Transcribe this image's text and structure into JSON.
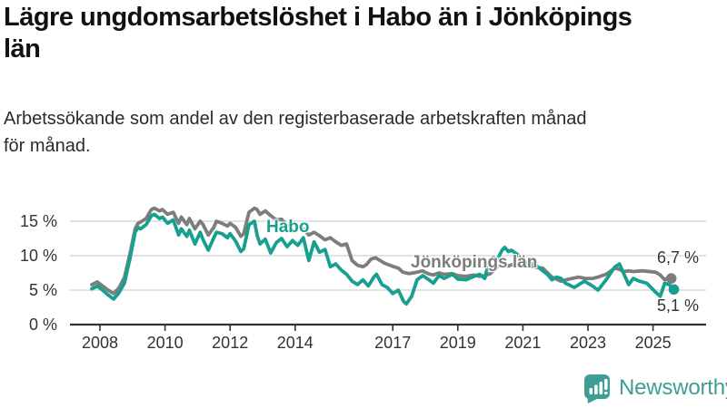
{
  "header": {
    "title_lines": [
      "Lägre ungdomsarbetslöshet i Habo än i Jönköpings",
      "län"
    ],
    "subtitle_lines": [
      "Arbetssökande som andel av den registerbaserade arbetskraften månad",
      "för månad."
    ]
  },
  "chart_data": {
    "type": "line",
    "title": "Lägre ungdomsarbetslöshet i Habo än i Jönköpings län",
    "subtitle": "Arbetssökande som andel av den registerbaserade arbetskraften månad för månad.",
    "unit": "%",
    "grid": "horizontal",
    "legend": "inline-labels",
    "x_axis": {
      "ticks": [
        2008,
        2010,
        2012,
        2014,
        2017,
        2019,
        2021,
        2023,
        2025
      ],
      "labels": [
        "2008",
        "2010",
        "2012",
        "2014",
        "2017",
        "2019",
        "2021",
        "2023",
        "2025"
      ],
      "range": [
        2007.7,
        2025.8
      ]
    },
    "y_axis": {
      "ticks": [
        0,
        5,
        10,
        15
      ],
      "labels": [
        "0 %",
        "5 %",
        "10 %",
        "15 %"
      ],
      "range": [
        0,
        18
      ]
    },
    "series": [
      {
        "name": "Habo",
        "color": "#17A08F",
        "end_label": "5,1 %",
        "end_value": 5.1,
        "points": [
          [
            2007.75,
            5.2
          ],
          [
            2007.92,
            5.6
          ],
          [
            2008.08,
            5.0
          ],
          [
            2008.25,
            4.3
          ],
          [
            2008.42,
            3.7
          ],
          [
            2008.58,
            4.6
          ],
          [
            2008.75,
            6.0
          ],
          [
            2008.92,
            9.5
          ],
          [
            2009.08,
            13.4
          ],
          [
            2009.17,
            14.1
          ],
          [
            2009.25,
            13.9
          ],
          [
            2009.42,
            14.5
          ],
          [
            2009.58,
            15.8
          ],
          [
            2009.67,
            16.0
          ],
          [
            2009.83,
            15.4
          ],
          [
            2009.92,
            15.6
          ],
          [
            2010.08,
            14.7
          ],
          [
            2010.25,
            15.2
          ],
          [
            2010.42,
            13.0
          ],
          [
            2010.5,
            13.9
          ],
          [
            2010.67,
            12.8
          ],
          [
            2010.75,
            13.7
          ],
          [
            2010.92,
            11.7
          ],
          [
            2011.08,
            13.4
          ],
          [
            2011.17,
            12.3
          ],
          [
            2011.33,
            10.8
          ],
          [
            2011.5,
            12.6
          ],
          [
            2011.58,
            13.4
          ],
          [
            2011.75,
            13.2
          ],
          [
            2011.92,
            12.6
          ],
          [
            2012.0,
            13.2
          ],
          [
            2012.17,
            12.1
          ],
          [
            2012.33,
            10.6
          ],
          [
            2012.42,
            11.0
          ],
          [
            2012.58,
            14.5
          ],
          [
            2012.75,
            15.0
          ],
          [
            2012.83,
            13.0
          ],
          [
            2012.92,
            11.7
          ],
          [
            2013.08,
            12.4
          ],
          [
            2013.25,
            10.4
          ],
          [
            2013.42,
            11.9
          ],
          [
            2013.58,
            12.5
          ],
          [
            2013.75,
            11.3
          ],
          [
            2013.92,
            12.2
          ],
          [
            2014.08,
            11.5
          ],
          [
            2014.25,
            12.6
          ],
          [
            2014.42,
            9.3
          ],
          [
            2014.58,
            12.0
          ],
          [
            2014.75,
            10.5
          ],
          [
            2014.92,
            10.9
          ],
          [
            2015.08,
            8.4
          ],
          [
            2015.25,
            8.8
          ],
          [
            2015.42,
            7.9
          ],
          [
            2015.58,
            7.3
          ],
          [
            2015.75,
            6.3
          ],
          [
            2015.92,
            5.8
          ],
          [
            2016.08,
            6.5
          ],
          [
            2016.25,
            5.6
          ],
          [
            2016.42,
            6.9
          ],
          [
            2016.5,
            7.3
          ],
          [
            2016.67,
            5.8
          ],
          [
            2016.83,
            5.4
          ],
          [
            2017.0,
            4.5
          ],
          [
            2017.17,
            5.0
          ],
          [
            2017.33,
            3.4
          ],
          [
            2017.42,
            3.0
          ],
          [
            2017.58,
            4.1
          ],
          [
            2017.75,
            6.5
          ],
          [
            2017.92,
            7.1
          ],
          [
            2018.08,
            6.6
          ],
          [
            2018.25,
            6.0
          ],
          [
            2018.42,
            7.1
          ],
          [
            2018.58,
            6.7
          ],
          [
            2018.83,
            7.3
          ],
          [
            2019.0,
            6.6
          ],
          [
            2019.25,
            6.5
          ],
          [
            2019.5,
            7.0
          ],
          [
            2019.67,
            7.3
          ],
          [
            2019.83,
            6.7
          ],
          [
            2019.94,
            8.9
          ],
          [
            2020.08,
            9.7
          ],
          [
            2020.22,
            9.5
          ],
          [
            2020.36,
            10.8
          ],
          [
            2020.44,
            11.2
          ],
          [
            2020.56,
            10.6
          ],
          [
            2020.64,
            10.8
          ],
          [
            2020.83,
            10.2
          ],
          [
            2021.0,
            9.4
          ],
          [
            2021.17,
            8.6
          ],
          [
            2021.33,
            8.9
          ],
          [
            2021.61,
            7.8
          ],
          [
            2021.75,
            7.3
          ],
          [
            2021.89,
            6.5
          ],
          [
            2022.03,
            6.9
          ],
          [
            2022.17,
            6.7
          ],
          [
            2022.31,
            6.0
          ],
          [
            2022.58,
            5.4
          ],
          [
            2022.89,
            6.3
          ],
          [
            2023.14,
            5.6
          ],
          [
            2023.31,
            5.0
          ],
          [
            2023.56,
            6.5
          ],
          [
            2023.83,
            8.4
          ],
          [
            2023.97,
            8.8
          ],
          [
            2024.11,
            7.3
          ],
          [
            2024.25,
            5.8
          ],
          [
            2024.39,
            6.7
          ],
          [
            2024.58,
            6.3
          ],
          [
            2024.81,
            6.0
          ],
          [
            2025.08,
            4.7
          ],
          [
            2025.22,
            4.1
          ],
          [
            2025.36,
            6.0
          ],
          [
            2025.5,
            5.8
          ],
          [
            2025.64,
            5.1
          ]
        ]
      },
      {
        "name": "Jönköpings län",
        "color": "#7D7D7D",
        "end_label": "6,7 %",
        "end_value": 6.7,
        "points": [
          [
            2007.75,
            5.8
          ],
          [
            2007.92,
            6.2
          ],
          [
            2008.08,
            5.6
          ],
          [
            2008.25,
            5.0
          ],
          [
            2008.42,
            4.5
          ],
          [
            2008.58,
            5.3
          ],
          [
            2008.75,
            6.8
          ],
          [
            2008.92,
            10.2
          ],
          [
            2009.08,
            13.9
          ],
          [
            2009.17,
            14.7
          ],
          [
            2009.25,
            14.9
          ],
          [
            2009.42,
            15.4
          ],
          [
            2009.58,
            16.7
          ],
          [
            2009.67,
            16.9
          ],
          [
            2009.83,
            16.5
          ],
          [
            2009.92,
            16.7
          ],
          [
            2010.08,
            16.0
          ],
          [
            2010.25,
            16.3
          ],
          [
            2010.42,
            14.7
          ],
          [
            2010.5,
            15.6
          ],
          [
            2010.67,
            14.5
          ],
          [
            2010.75,
            15.4
          ],
          [
            2010.92,
            13.9
          ],
          [
            2011.08,
            15.0
          ],
          [
            2011.17,
            14.5
          ],
          [
            2011.33,
            13.0
          ],
          [
            2011.5,
            14.1
          ],
          [
            2011.58,
            15.0
          ],
          [
            2011.75,
            14.7
          ],
          [
            2011.92,
            14.3
          ],
          [
            2012.0,
            14.7
          ],
          [
            2012.17,
            14.1
          ],
          [
            2012.33,
            12.8
          ],
          [
            2012.42,
            13.2
          ],
          [
            2012.58,
            16.3
          ],
          [
            2012.75,
            16.9
          ],
          [
            2012.83,
            16.7
          ],
          [
            2012.92,
            16.0
          ],
          [
            2013.08,
            16.5
          ],
          [
            2013.25,
            15.8
          ],
          [
            2013.42,
            15.2
          ],
          [
            2013.58,
            15.3
          ],
          [
            2013.75,
            14.4
          ],
          [
            2013.92,
            14.6
          ],
          [
            2014.08,
            14.3
          ],
          [
            2014.25,
            13.9
          ],
          [
            2014.42,
            13.0
          ],
          [
            2014.58,
            13.4
          ],
          [
            2014.75,
            12.9
          ],
          [
            2014.92,
            12.3
          ],
          [
            2015.08,
            12.6
          ],
          [
            2015.25,
            12.0
          ],
          [
            2015.42,
            11.5
          ],
          [
            2015.58,
            11.7
          ],
          [
            2015.75,
            9.3
          ],
          [
            2015.92,
            8.6
          ],
          [
            2016.08,
            8.4
          ],
          [
            2016.19,
            8.7
          ],
          [
            2016.33,
            9.5
          ],
          [
            2016.47,
            9.7
          ],
          [
            2016.75,
            8.9
          ],
          [
            2017.03,
            8.4
          ],
          [
            2017.17,
            8.2
          ],
          [
            2017.31,
            7.6
          ],
          [
            2017.5,
            7.4
          ],
          [
            2017.75,
            7.6
          ],
          [
            2017.92,
            7.8
          ],
          [
            2018.08,
            7.4
          ],
          [
            2018.25,
            7.2
          ],
          [
            2018.42,
            7.5
          ],
          [
            2018.58,
            7.3
          ],
          [
            2018.83,
            7.4
          ],
          [
            2019.0,
            7.1
          ],
          [
            2019.25,
            7.0
          ],
          [
            2019.5,
            7.2
          ],
          [
            2019.67,
            7.0
          ],
          [
            2019.83,
            7.1
          ],
          [
            2020.0,
            7.4
          ],
          [
            2020.17,
            8.2
          ],
          [
            2020.36,
            8.8
          ],
          [
            2020.56,
            8.5
          ],
          [
            2020.72,
            8.8
          ],
          [
            2020.92,
            9.0
          ],
          [
            2021.08,
            8.8
          ],
          [
            2021.25,
            8.5
          ],
          [
            2021.42,
            8.3
          ],
          [
            2021.61,
            8.2
          ],
          [
            2021.89,
            6.9
          ],
          [
            2022.17,
            6.3
          ],
          [
            2022.42,
            6.6
          ],
          [
            2022.72,
            6.9
          ],
          [
            2022.92,
            6.7
          ],
          [
            2023.14,
            6.7
          ],
          [
            2023.31,
            6.9
          ],
          [
            2023.56,
            7.3
          ],
          [
            2023.83,
            8.2
          ],
          [
            2023.97,
            8.0
          ],
          [
            2024.11,
            7.7
          ],
          [
            2024.25,
            7.8
          ],
          [
            2024.39,
            7.7
          ],
          [
            2024.67,
            7.8
          ],
          [
            2025.08,
            7.6
          ],
          [
            2025.22,
            7.2
          ],
          [
            2025.36,
            6.5
          ],
          [
            2025.5,
            6.9
          ],
          [
            2025.56,
            6.7
          ]
        ]
      }
    ],
    "colors": {
      "axis": "#333333",
      "grid": "#D9D9D9",
      "habo": "#17A08F",
      "county": "#7D7D7D"
    }
  },
  "footer": {
    "brand": "Newsworthy",
    "brand_color": "#3E9E96"
  }
}
